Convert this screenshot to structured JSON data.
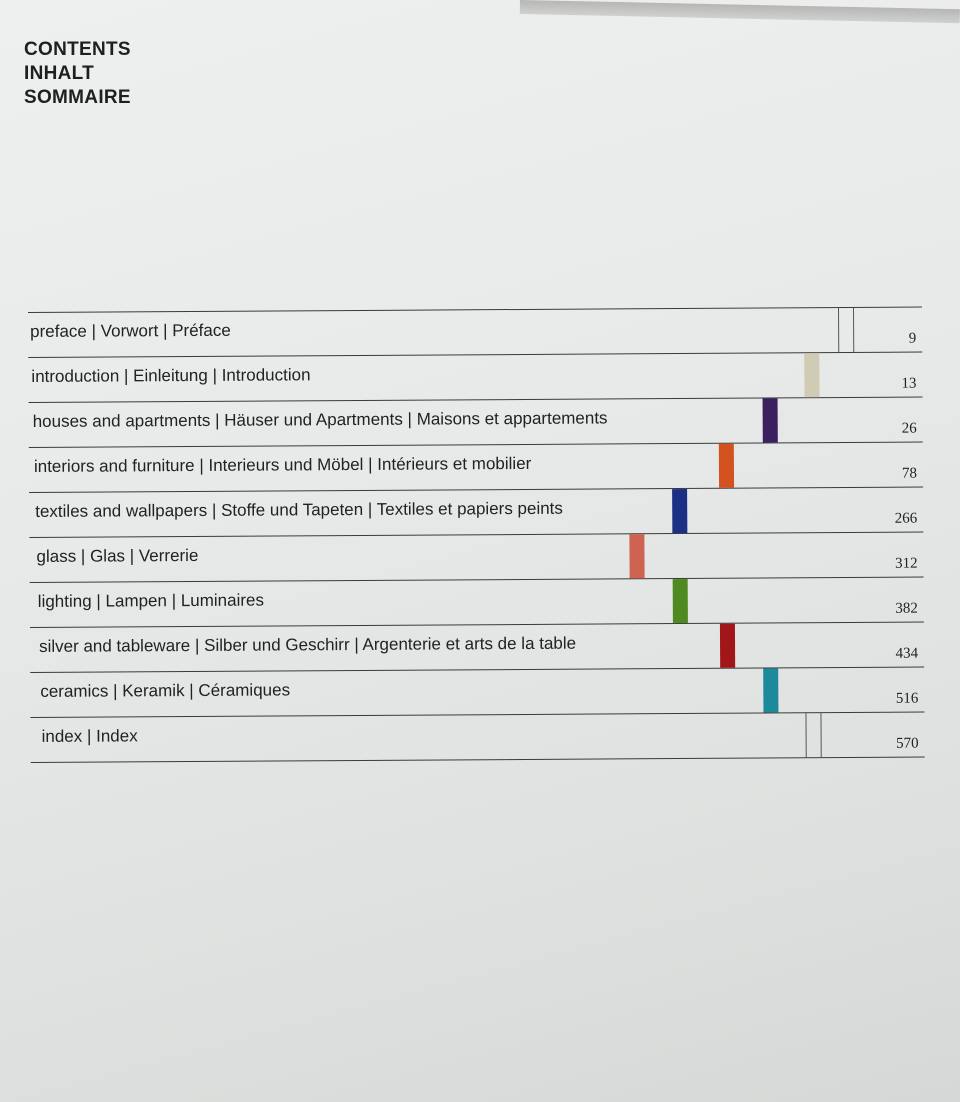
{
  "heading": [
    "CONTENTS",
    "INHALT",
    "SOMMAIRE"
  ],
  "toc": [
    {
      "label": "preface | Vorwort | Préface",
      "page": "9",
      "marker": "outline"
    },
    {
      "label": "introduction | Einleitung | Introduction",
      "page": "13",
      "marker": "#cfcbb4"
    },
    {
      "label": "houses and apartments | Häuser und Apartments | Maisons et appartements",
      "page": "26",
      "marker": "#3c1f5e"
    },
    {
      "label": "interiors and furniture | Interieurs und Möbel | Intérieurs et mobilier",
      "page": "78",
      "marker": "#d35320"
    },
    {
      "label": "textiles and wallpapers | Stoffe und Tapeten | Textiles et papiers peints",
      "page": "266",
      "marker": "#1b2f86"
    },
    {
      "label": "glass | Glas | Verrerie",
      "page": "312",
      "marker": "#cf6352"
    },
    {
      "label": "lighting | Lampen | Luminaires",
      "page": "382",
      "marker": "#4e8a20"
    },
    {
      "label": "silver and tableware | Silber und Geschirr | Argenterie et arts de la table",
      "page": "434",
      "marker": "#a01619"
    },
    {
      "label": "ceramics | Keramik | Céramiques",
      "page": "516",
      "marker": "#1c8a9a"
    },
    {
      "label": "index | Index",
      "page": "570",
      "marker": "outline"
    }
  ]
}
